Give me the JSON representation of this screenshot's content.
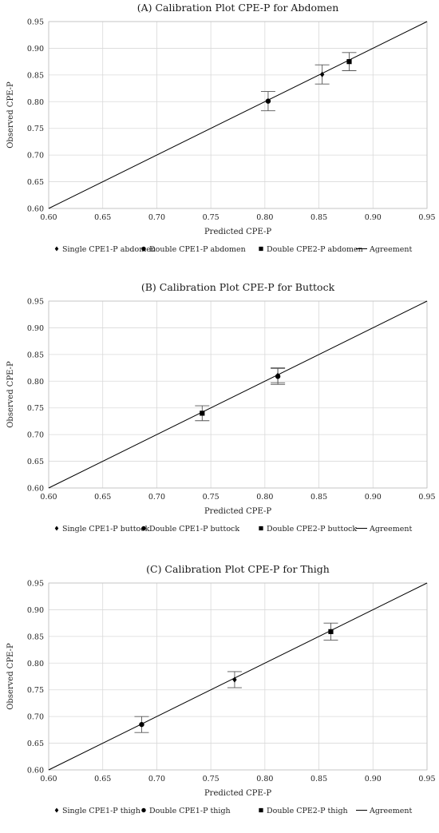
{
  "chart_data": [
    {
      "type": "scatter",
      "title": "(A) Calibration Plot CPE-P for Abdomen",
      "xlabel": "Predicted CPE-P",
      "ylabel": "Observed CPE-P",
      "xlim": [
        0.6,
        0.95
      ],
      "ylim": [
        0.6,
        0.95
      ],
      "xticks": [
        "0.60",
        "0.65",
        "0.70",
        "0.75",
        "0.80",
        "0.85",
        "0.90",
        "0.95"
      ],
      "yticks": [
        "0.60",
        "0.65",
        "0.70",
        "0.75",
        "0.80",
        "0.85",
        "0.90",
        "0.95"
      ],
      "grid": true,
      "legend_position": "bottom",
      "series": [
        {
          "name": "Single CPE1-P abdomen",
          "marker": "diamond",
          "points": [
            {
              "x": 0.853,
              "y": 0.851,
              "err": 0.018
            }
          ]
        },
        {
          "name": "Double CPE1-P abdomen",
          "marker": "circle",
          "points": [
            {
              "x": 0.803,
              "y": 0.801,
              "err": 0.018
            }
          ]
        },
        {
          "name": "Double CPE2-P abdomen",
          "marker": "square",
          "points": [
            {
              "x": 0.878,
              "y": 0.875,
              "err": 0.017
            }
          ]
        },
        {
          "name": "Agreement",
          "marker": "line",
          "points": [
            {
              "x": 0.6,
              "y": 0.6
            },
            {
              "x": 0.95,
              "y": 0.95
            }
          ]
        }
      ]
    },
    {
      "type": "scatter",
      "title": "(B) Calibration Plot CPE-P for Buttock",
      "xlabel": "Predicted CPE-P",
      "ylabel": "Observed CPE-P",
      "xlim": [
        0.6,
        0.95
      ],
      "ylim": [
        0.6,
        0.95
      ],
      "xticks": [
        "0.60",
        "0.65",
        "0.70",
        "0.75",
        "0.80",
        "0.85",
        "0.90",
        "0.95"
      ],
      "yticks": [
        "0.60",
        "0.65",
        "0.70",
        "0.75",
        "0.80",
        "0.85",
        "0.90",
        "0.95"
      ],
      "grid": true,
      "legend_position": "bottom",
      "series": [
        {
          "name": "Single CPE1-P buttock",
          "marker": "diamond",
          "points": [
            {
              "x": 0.812,
              "y": 0.811,
              "err": 0.014
            }
          ]
        },
        {
          "name": "Double CPE1-P buttock",
          "marker": "circle",
          "points": [
            {
              "x": 0.812,
              "y": 0.809,
              "err": 0.015
            }
          ]
        },
        {
          "name": "Double CPE2-P buttock",
          "marker": "square",
          "points": [
            {
              "x": 0.742,
              "y": 0.74,
              "err": 0.014
            }
          ]
        },
        {
          "name": "Agreement",
          "marker": "line",
          "points": [
            {
              "x": 0.6,
              "y": 0.6
            },
            {
              "x": 0.95,
              "y": 0.95
            }
          ]
        }
      ]
    },
    {
      "type": "scatter",
      "title": "(C) Calibration Plot CPE-P for Thigh",
      "xlabel": "Predicted CPE-P",
      "ylabel": "Observed CPE-P",
      "xlim": [
        0.6,
        0.95
      ],
      "ylim": [
        0.6,
        0.95
      ],
      "xticks": [
        "0.60",
        "0.65",
        "0.70",
        "0.75",
        "0.80",
        "0.85",
        "0.90",
        "0.95"
      ],
      "yticks": [
        "0.60",
        "0.65",
        "0.70",
        "0.75",
        "0.80",
        "0.85",
        "0.90",
        "0.95"
      ],
      "grid": true,
      "legend_position": "bottom",
      "series": [
        {
          "name": "Single CPE1-P thigh",
          "marker": "diamond",
          "points": [
            {
              "x": 0.772,
              "y": 0.769,
              "err": 0.015
            }
          ]
        },
        {
          "name": "Double CPE1-P thigh",
          "marker": "circle",
          "points": [
            {
              "x": 0.686,
              "y": 0.685,
              "err": 0.015
            }
          ]
        },
        {
          "name": "Double CPE2-P thigh",
          "marker": "square",
          "points": [
            {
              "x": 0.861,
              "y": 0.859,
              "err": 0.016
            }
          ]
        },
        {
          "name": "Agreement",
          "marker": "line",
          "points": [
            {
              "x": 0.6,
              "y": 0.6
            },
            {
              "x": 0.95,
              "y": 0.95
            }
          ]
        }
      ]
    }
  ]
}
